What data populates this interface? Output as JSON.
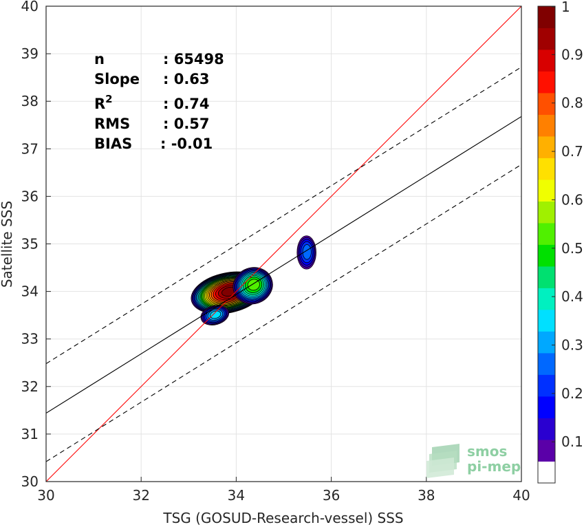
{
  "chart_data": {
    "type": "heatmap",
    "subtype": "density-contour scatter comparison",
    "xlabel": "TSG (GOSUD-Research-vessel) SSS",
    "ylabel": "Satellite SSS",
    "xlim": [
      30,
      40
    ],
    "ylim": [
      30,
      40
    ],
    "xticks": [
      "30",
      "32",
      "34",
      "36",
      "38",
      "40"
    ],
    "yticks": [
      "30",
      "31",
      "32",
      "33",
      "34",
      "35",
      "36",
      "37",
      "38",
      "39",
      "40"
    ],
    "grid": true,
    "stats": [
      {
        "key": "n",
        "sup": "",
        "value": ": 65498"
      },
      {
        "key": "Slope",
        "sup": "",
        "value": ": 0.63"
      },
      {
        "key": "R",
        "sup": "2",
        "value": ": 0.74"
      },
      {
        "key": "RMS",
        "sup": "",
        "value": ": 0.57"
      },
      {
        "key": "BIAS",
        "sup": "",
        "value": ": -0.01"
      }
    ],
    "lines": [
      {
        "name": "identity",
        "color": "#ff0000",
        "style": "solid",
        "points": [
          [
            30,
            30
          ],
          [
            40,
            40
          ]
        ]
      },
      {
        "name": "regression",
        "color": "#000000",
        "style": "solid",
        "points": [
          [
            30,
            31.44
          ],
          [
            40,
            37.68
          ]
        ]
      },
      {
        "name": "regression-plus-offset",
        "color": "#000000",
        "style": "dashed",
        "points": [
          [
            30,
            32.48
          ],
          [
            40,
            38.72
          ]
        ]
      },
      {
        "name": "regression-minus-offset",
        "color": "#000000",
        "style": "dashed",
        "points": [
          [
            30,
            30.42
          ],
          [
            40,
            36.67
          ]
        ]
      }
    ],
    "density_blobs": [
      {
        "cx": 33.82,
        "cy": 33.97,
        "rx": 0.78,
        "ry": 0.42,
        "rot": 12,
        "peak": 1.0
      },
      {
        "cx": 34.35,
        "cy": 34.12,
        "rx": 0.42,
        "ry": 0.38,
        "rot": 20,
        "peak": 0.52
      },
      {
        "cx": 33.55,
        "cy": 33.5,
        "rx": 0.3,
        "ry": 0.2,
        "rot": 15,
        "peak": 0.32
      },
      {
        "cx": 35.48,
        "cy": 34.82,
        "rx": 0.2,
        "ry": 0.35,
        "rot": 0,
        "peak": 0.24
      }
    ],
    "colorbar": {
      "ticks": [
        "0.1",
        "0.2",
        "0.3",
        "0.4",
        "0.5",
        "0.6",
        "0.7",
        "0.8",
        "0.9",
        "1"
      ],
      "colors": [
        "#ffffff",
        "#5a00a8",
        "#2a00d0",
        "#0000ff",
        "#0030ff",
        "#0068ff",
        "#00a8ff",
        "#00e0ff",
        "#00f0c0",
        "#00e070",
        "#00e000",
        "#50f000",
        "#a0f000",
        "#f0ff00",
        "#ffe000",
        "#ffb000",
        "#ff8000",
        "#ff5000",
        "#ff1000",
        "#d80000",
        "#a00000",
        "#800000"
      ]
    },
    "logo": {
      "line1": "smos",
      "line2": "pi-mep"
    }
  }
}
